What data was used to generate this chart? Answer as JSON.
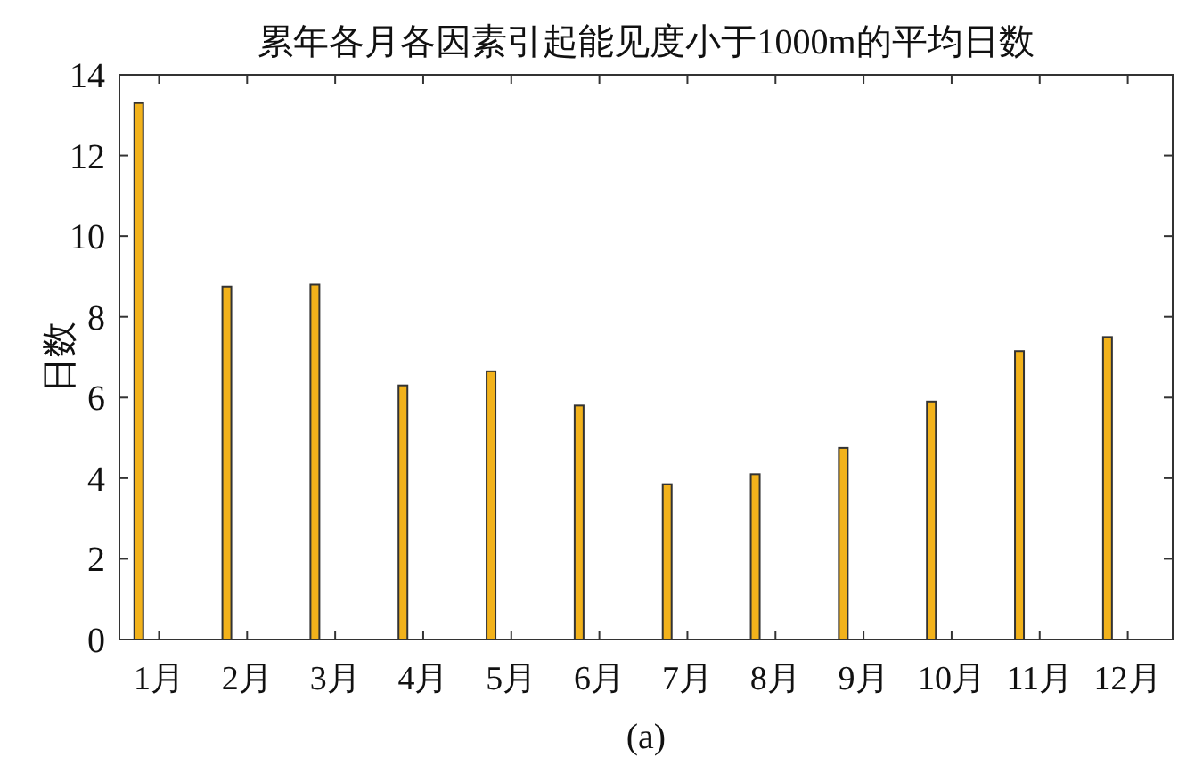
{
  "chart_data": {
    "type": "bar",
    "title": "累年各月各因素引起能见度小于1000m的平均日数",
    "ylabel": "日数",
    "annotations": [
      "(a)"
    ],
    "categories": [
      "1月",
      "2月",
      "3月",
      "4月",
      "5月",
      "6月",
      "7月",
      "8月",
      "9月",
      "10月",
      "11月",
      "12月"
    ],
    "values": [
      13.3,
      8.75,
      8.8,
      6.3,
      6.65,
      5.8,
      3.85,
      4.1,
      4.75,
      5.9,
      7.15,
      7.5
    ],
    "color": "#f2b21b",
    "ylim": [
      0,
      14
    ],
    "yticks": [
      0,
      2,
      4,
      6,
      8,
      10,
      12,
      14
    ]
  }
}
